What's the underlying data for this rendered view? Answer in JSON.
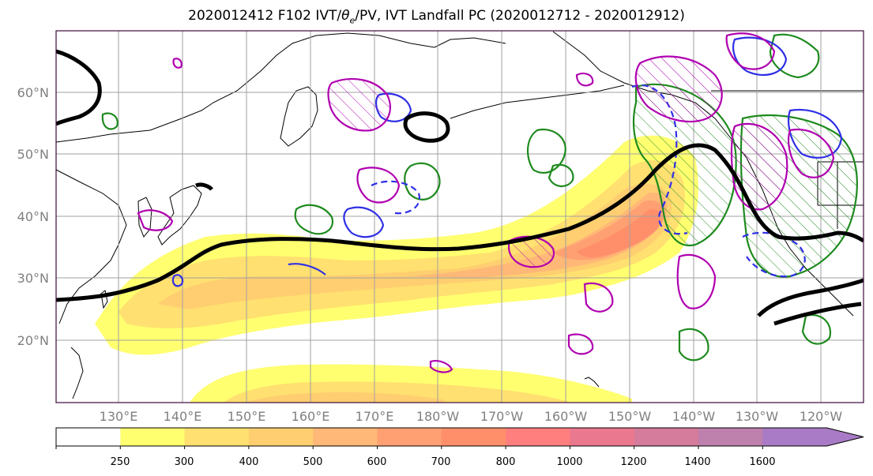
{
  "title": {
    "prefix": "2020012412 F102 IVT/",
    "theta": "θ",
    "sub": "e",
    "suffix": "/PV, IVT Landfall PC (2020012712 - 2020012912)"
  },
  "map": {
    "projection": "PlateCarree",
    "lon_range_deg_east": [
      120,
      247
    ],
    "lat_range_deg": [
      10,
      70
    ],
    "lat_ticks": [
      "60°N",
      "50°N",
      "40°N",
      "30°N",
      "20°N"
    ],
    "lon_ticks": [
      "130°E",
      "140°E",
      "150°E",
      "160°E",
      "170°E",
      "180°W",
      "170°W",
      "160°W",
      "150°W",
      "140°W",
      "130°W",
      "120°W"
    ],
    "grid": true,
    "frame_color": "#3d0a3d",
    "contour_colors": {
      "jet_line": "#000000",
      "theta_e": "#2f2fe6",
      "pv": "#b000b0",
      "landfall": "#1e8a1e"
    }
  },
  "colorbar": {
    "bounds": [
      250,
      300,
      400,
      500,
      600,
      700,
      800,
      1000,
      1200,
      1400,
      1600
    ],
    "tick_labels": [
      "250",
      "300",
      "400",
      "500",
      "600",
      "700",
      "800",
      "1000",
      "1200",
      "1400",
      "1600"
    ],
    "colors": [
      "#ffffff",
      "#ffff70",
      "#ffe070",
      "#ffce70",
      "#ffb877",
      "#ffa072",
      "#ff8f6b",
      "#ff7f7f",
      "#ea788e",
      "#d57c9c",
      "#be80ac",
      "#a97bc6"
    ],
    "extend": "max"
  }
}
